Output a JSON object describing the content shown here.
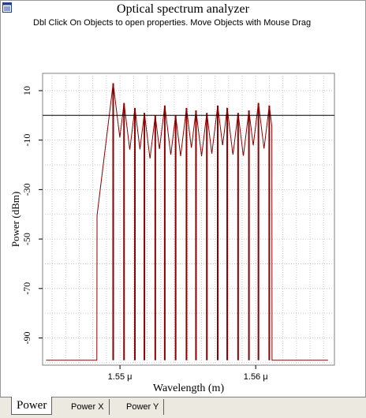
{
  "window": {
    "title": "Optical spectrum analyzer",
    "hint": "Dbl Click On Objects to open properties.  Move Objects with Mouse Drag"
  },
  "tabs": [
    {
      "label": "Power",
      "active": true
    },
    {
      "label": "Power X",
      "active": false
    },
    {
      "label": "Power Y",
      "active": false
    }
  ],
  "colors": {
    "trace": "#8b0000",
    "grid": "#c8c8c8",
    "reference_line": "#000000",
    "background": "#ffffff"
  },
  "chart_data": {
    "type": "line",
    "title": "",
    "xlabel": "Wavelength (m)",
    "ylabel": "Power (dBm)",
    "x_unit_label": "μ",
    "xlim": [
      1.5443,
      1.5658
    ],
    "ylim": [
      -101,
      17
    ],
    "x_ticks": [
      {
        "value": 1.55,
        "label": "1.55 μ"
      },
      {
        "value": 1.56,
        "label": "1.56 μ"
      }
    ],
    "y_ticks": [
      {
        "value": 10,
        "label": "10"
      },
      {
        "value": -10,
        "label": "-10"
      },
      {
        "value": -30,
        "label": "-30"
      },
      {
        "value": -50,
        "label": "-50"
      },
      {
        "value": -70,
        "label": "-70"
      },
      {
        "value": -90,
        "label": "-90"
      }
    ],
    "grid": true,
    "reference_line_y": 0,
    "noise_floor": -99,
    "band": [
      1.5483,
      1.5612
    ],
    "channels": {
      "wavelength": [
        1.5495,
        1.5503,
        1.5511,
        1.5518,
        1.5526,
        1.5533,
        1.5541,
        1.5549,
        1.5556,
        1.5564,
        1.5572,
        1.5579,
        1.5587,
        1.5595,
        1.5602,
        1.561
      ],
      "peak_power": [
        13,
        5,
        3,
        1,
        0,
        4,
        0,
        3,
        2,
        1,
        4,
        3,
        1,
        2,
        5,
        4
      ]
    }
  }
}
